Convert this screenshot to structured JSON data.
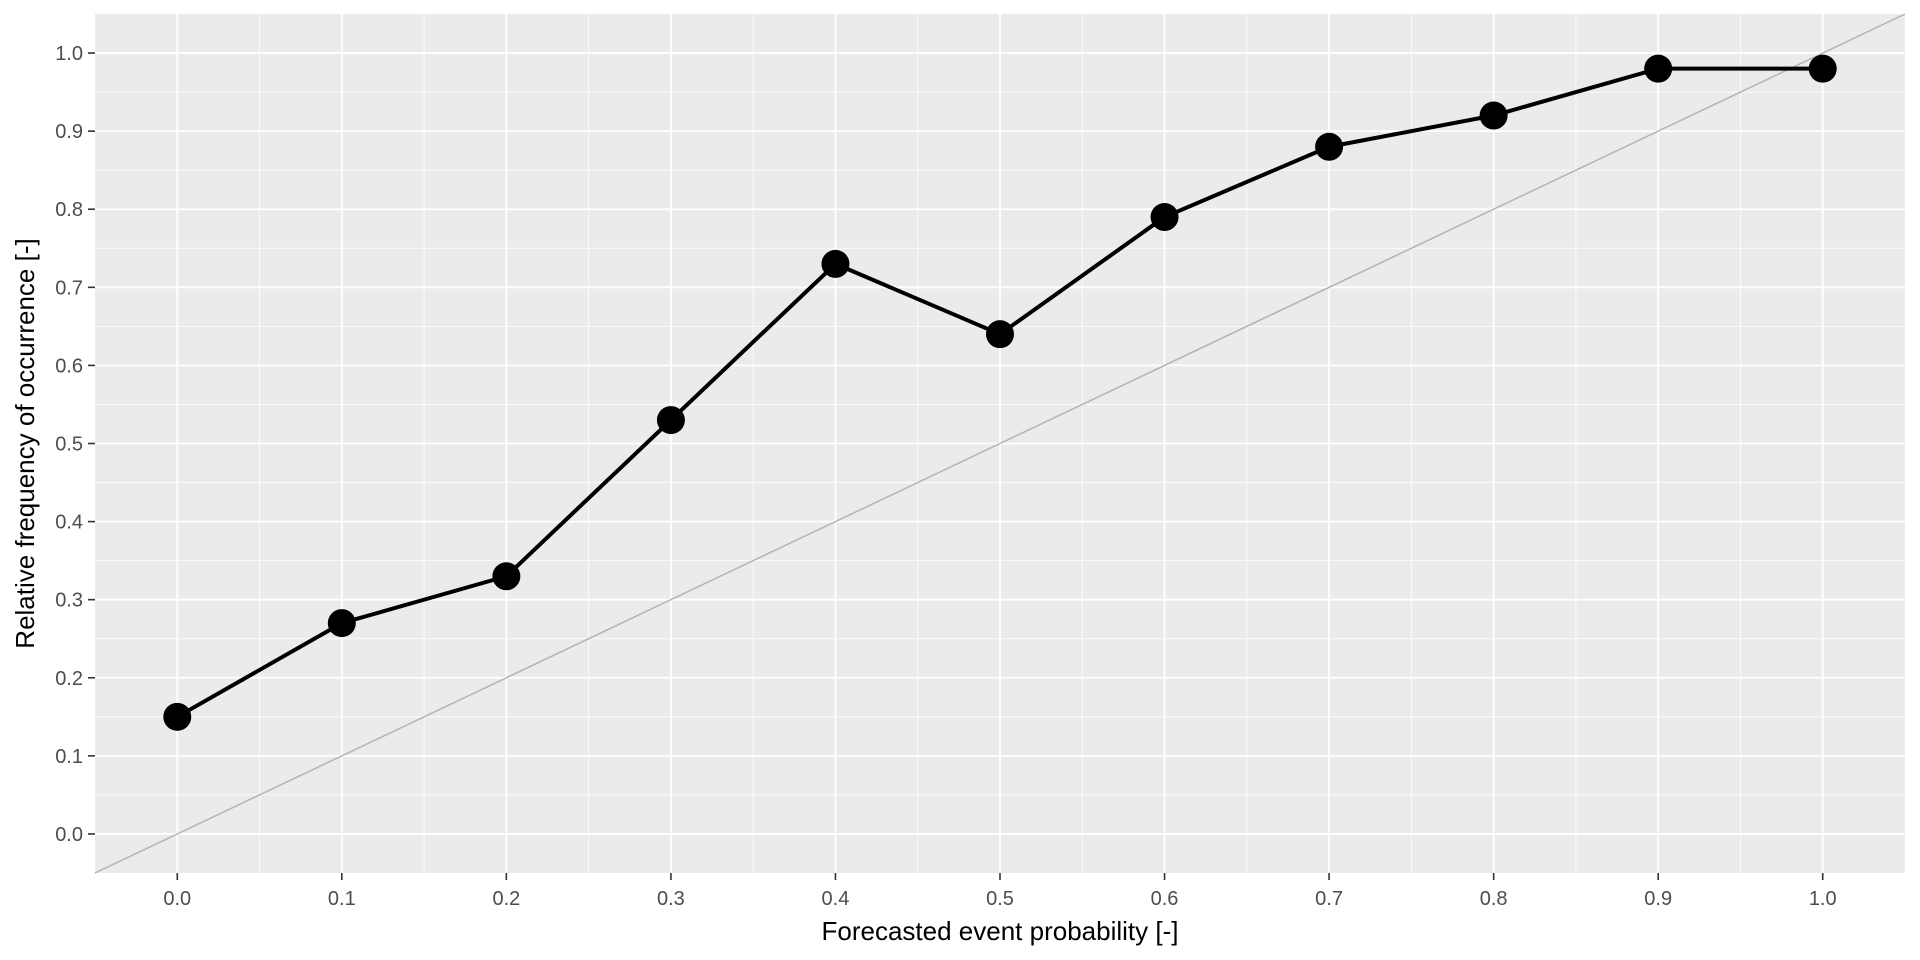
{
  "chart_data": {
    "type": "line",
    "title": "",
    "xlabel": "Forecasted event probability [-]",
    "ylabel": "Relative frequency of occurrence [-]",
    "xlim": [
      -0.05,
      1.05
    ],
    "ylim": [
      -0.05,
      1.05
    ],
    "x_ticks": [
      0.0,
      0.1,
      0.2,
      0.3,
      0.4,
      0.5,
      0.6,
      0.7,
      0.8,
      0.9,
      1.0
    ],
    "x_tick_labels": [
      "0.0",
      "0.1",
      "0.2",
      "0.3",
      "0.4",
      "0.5",
      "0.6",
      "0.7",
      "0.8",
      "0.9",
      "1.0"
    ],
    "y_ticks": [
      0.0,
      0.1,
      0.2,
      0.3,
      0.4,
      0.5,
      0.6,
      0.7,
      0.8,
      0.9,
      1.0
    ],
    "y_tick_labels": [
      "0.0",
      "0.1",
      "0.2",
      "0.3",
      "0.4",
      "0.5",
      "0.6",
      "0.7",
      "0.8",
      "0.9",
      "1.0"
    ],
    "grid": true,
    "legend": "none",
    "series": [
      {
        "x": [
          0.0,
          0.1,
          0.2,
          0.3,
          0.4,
          0.5,
          0.6,
          0.7,
          0.8,
          0.9,
          1.0
        ],
        "y": [
          0.15,
          0.27,
          0.33,
          0.53,
          0.73,
          0.64,
          0.79,
          0.88,
          0.92,
          0.98,
          0.98
        ],
        "color": "#000000",
        "markers": true
      }
    ],
    "reference_line": {
      "type": "diagonal",
      "slope": 1,
      "intercept": 0,
      "color": "#b3b3b3"
    },
    "colors": {
      "panel_background": "#ebebeb",
      "grid": "#ffffff",
      "tick_text": "#4d4d4d"
    }
  }
}
